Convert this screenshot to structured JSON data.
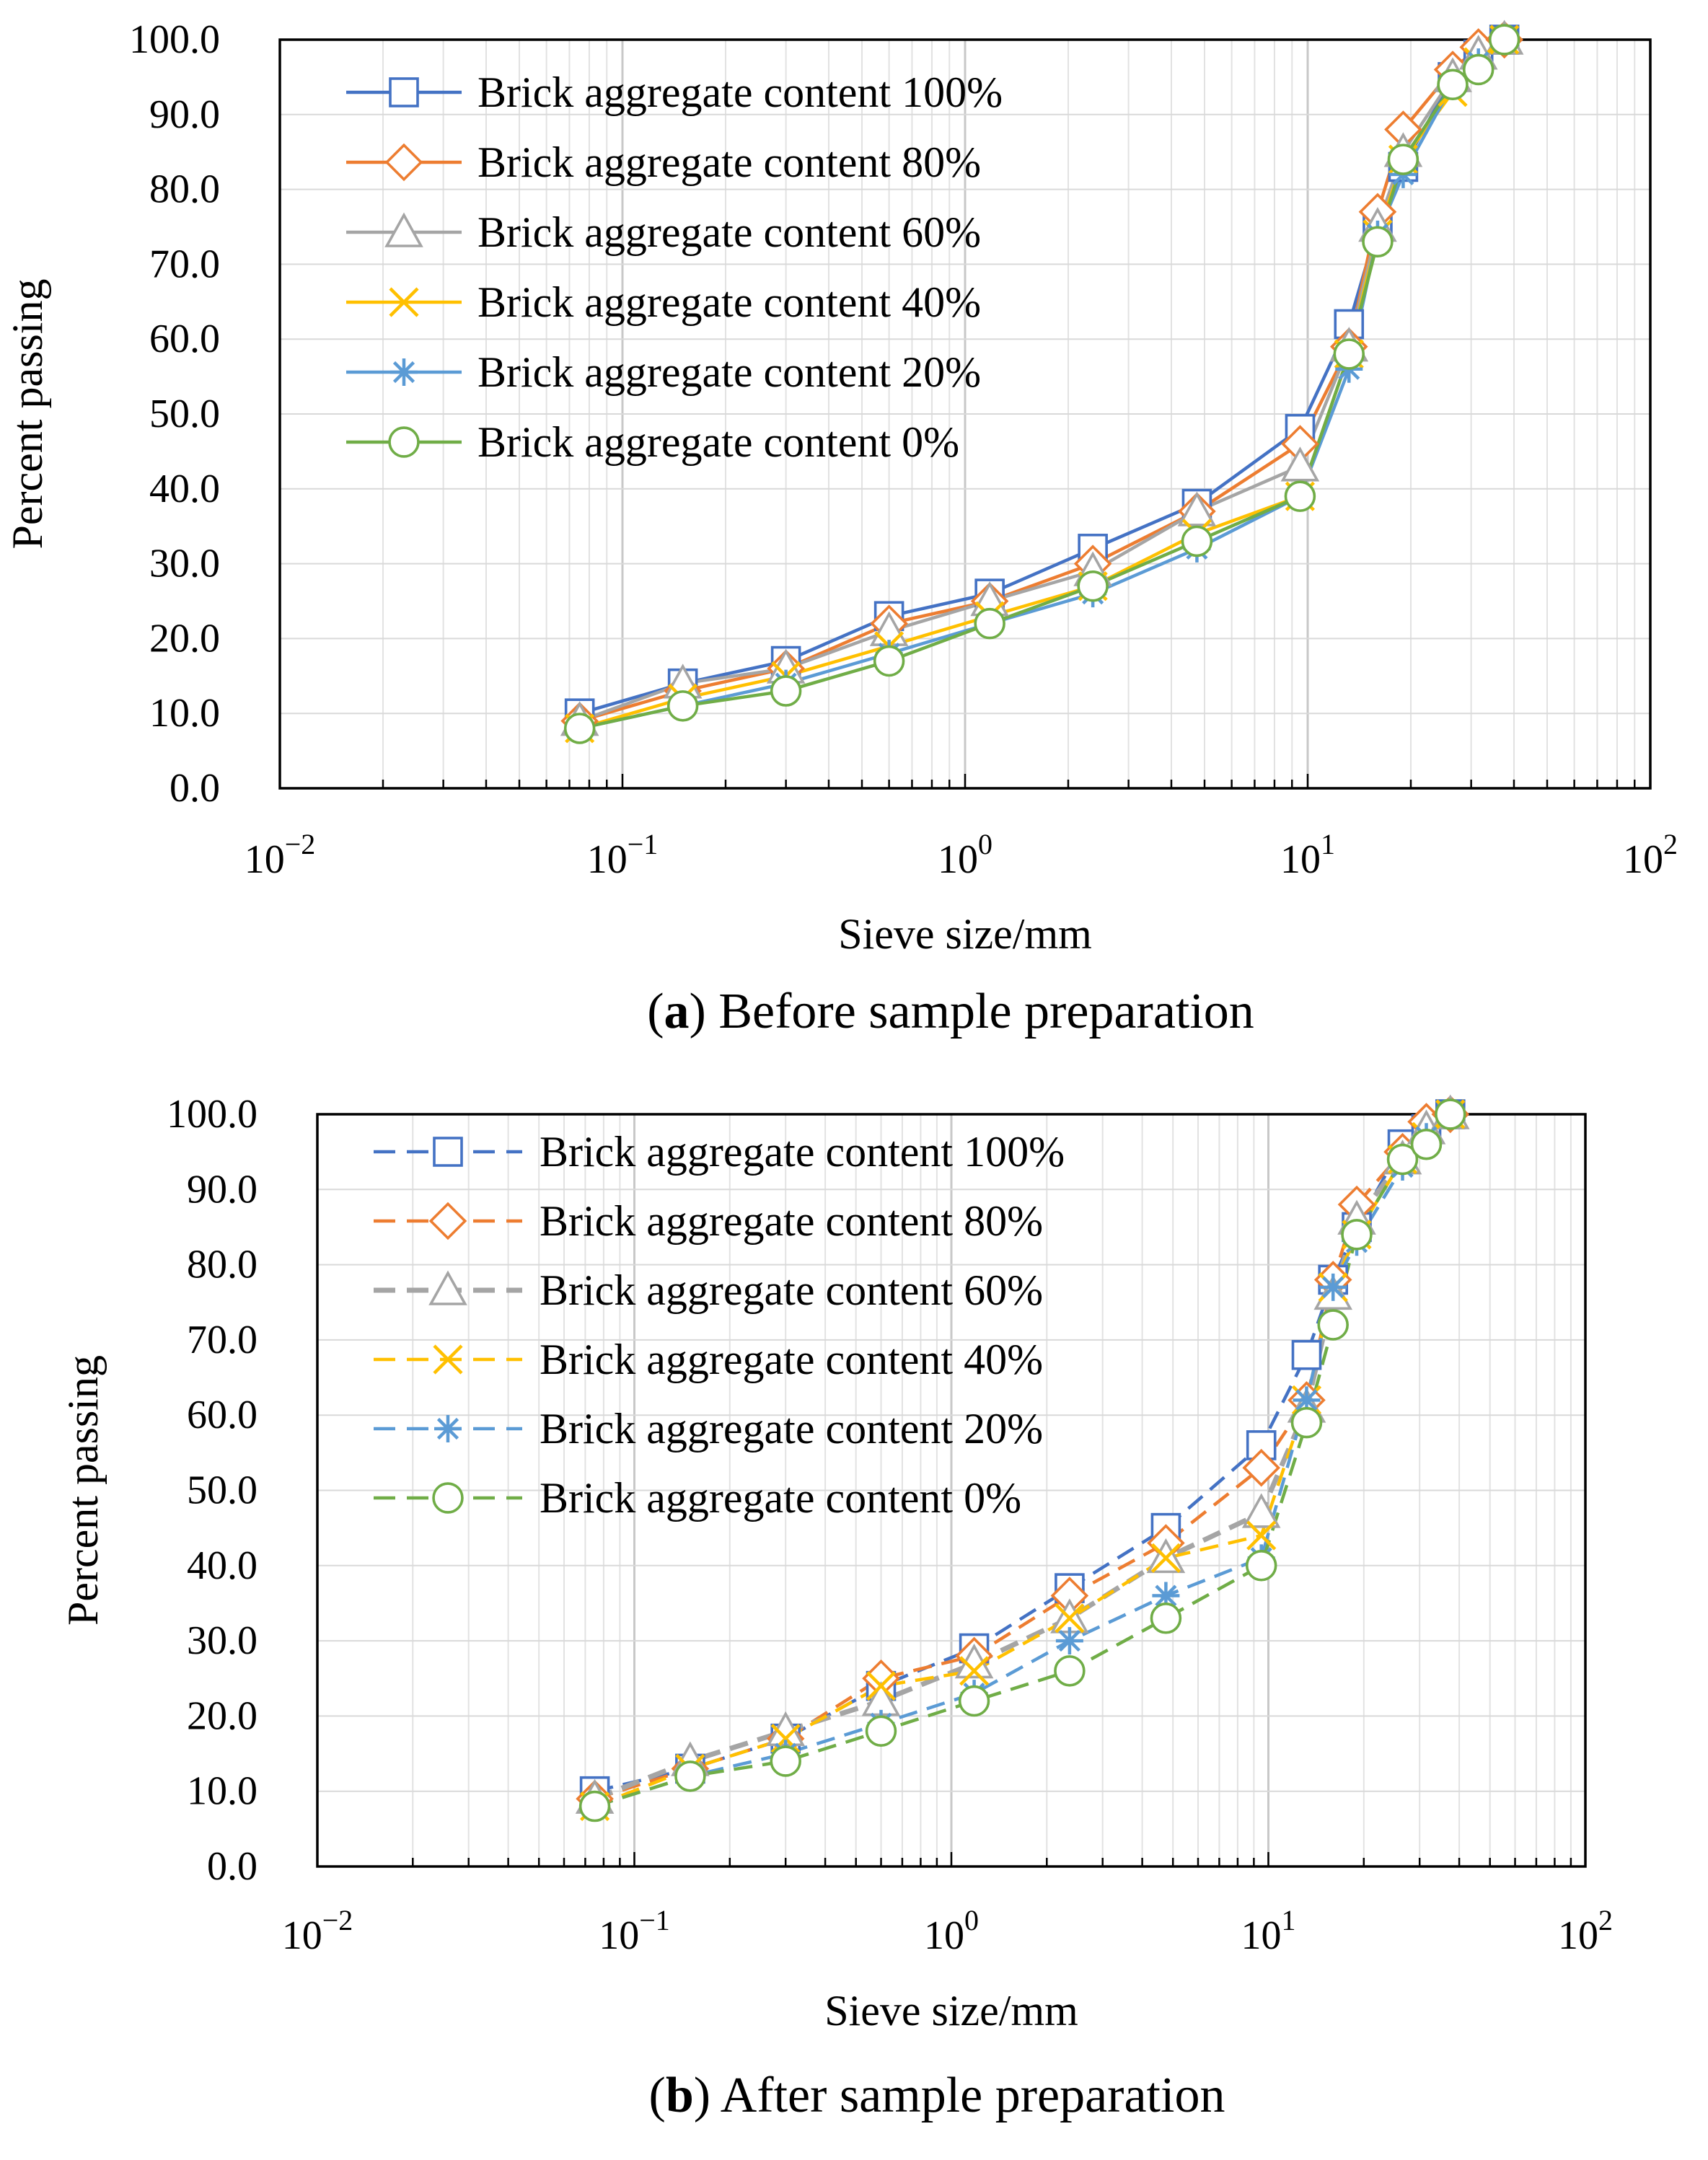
{
  "chart_data": [
    {
      "type": "line",
      "panel_label": "a",
      "caption": "Before sample preparation",
      "xlabel": "Sieve size/mm",
      "ylabel": "Percent passing",
      "xscale": "log",
      "xlim": [
        0.01,
        100
      ],
      "ylim": [
        0,
        100
      ],
      "xtick_labels": [
        {
          "base": "10",
          "exp": "−2"
        },
        {
          "base": "10",
          "exp": "−1"
        },
        {
          "base": "10",
          "exp": "0"
        },
        {
          "base": "10",
          "exp": "1"
        },
        {
          "base": "10",
          "exp": "2"
        }
      ],
      "ytick_labels": [
        "0.0",
        "10.0",
        "20.0",
        "30.0",
        "40.0",
        "50.0",
        "60.0",
        "70.0",
        "80.0",
        "90.0",
        "100.0"
      ],
      "grid": true,
      "line_style": "solid",
      "legend_position": "top-left",
      "x": [
        0.075,
        0.15,
        0.3,
        0.6,
        1.18,
        2.36,
        4.75,
        9.5,
        13.2,
        16,
        19,
        26.5,
        31.5,
        37.5
      ],
      "series": [
        {
          "name": "Brick aggregate content 100%",
          "marker": "square",
          "color": "#4472C4",
          "values": [
            10,
            14,
            17,
            23,
            26,
            32,
            38,
            48,
            62,
            75,
            83,
            95,
            98,
            100
          ]
        },
        {
          "name": "Brick aggregate content 80%",
          "marker": "diamond",
          "color": "#ED7D31",
          "values": [
            9,
            13,
            16,
            22,
            25,
            30,
            37,
            46,
            59,
            77,
            88,
            96,
            99,
            100
          ]
        },
        {
          "name": "Brick aggregate content 60%",
          "marker": "triangle",
          "color": "#A5A5A5",
          "values": [
            9,
            14,
            16,
            21,
            25,
            29,
            37,
            43,
            59,
            75,
            85,
            95,
            98,
            100
          ]
        },
        {
          "name": "Brick aggregate content 40%",
          "marker": "x",
          "color": "#FFC000",
          "values": [
            8,
            12,
            15,
            19,
            23,
            27,
            34,
            39,
            58,
            74,
            84,
            93,
            97,
            100
          ]
        },
        {
          "name": "Brick aggregate content 20%",
          "marker": "asterisk",
          "color": "#5B9BD5",
          "values": [
            8,
            11,
            14,
            18,
            22,
            26,
            32,
            39,
            56,
            74,
            82,
            94,
            97,
            100
          ]
        },
        {
          "name": "Brick aggregate content 0%",
          "marker": "circle",
          "color": "#70AD47",
          "values": [
            8,
            11,
            13,
            17,
            22,
            27,
            33,
            39,
            58,
            73,
            84,
            94,
            96,
            100
          ]
        }
      ]
    },
    {
      "type": "line",
      "panel_label": "b",
      "caption": "After sample preparation",
      "xlabel": "Sieve size/mm",
      "ylabel": "Percent passing",
      "xscale": "log",
      "xlim": [
        0.01,
        100
      ],
      "ylim": [
        0,
        100
      ],
      "xtick_labels": [
        {
          "base": "10",
          "exp": "−2"
        },
        {
          "base": "10",
          "exp": "−1"
        },
        {
          "base": "10",
          "exp": "0"
        },
        {
          "base": "10",
          "exp": "1"
        },
        {
          "base": "10",
          "exp": "2"
        }
      ],
      "ytick_labels": [
        "0.0",
        "10.0",
        "20.0",
        "30.0",
        "40.0",
        "50.0",
        "60.0",
        "70.0",
        "80.0",
        "90.0",
        "100.0"
      ],
      "grid": true,
      "line_style": "dashed",
      "legend_position": "top-left",
      "x": [
        0.075,
        0.15,
        0.3,
        0.6,
        1.18,
        2.36,
        4.75,
        9.5,
        13.2,
        16,
        19,
        26.5,
        31.5,
        37.5
      ],
      "series": [
        {
          "name": "Brick aggregate content 100%",
          "marker": "square",
          "color": "#4472C4",
          "values": [
            10,
            13,
            17,
            24,
            29,
            37,
            45,
            56,
            68,
            78,
            85,
            96,
            98,
            100
          ]
        },
        {
          "name": "Brick aggregate content 80%",
          "marker": "diamond",
          "color": "#ED7D31",
          "values": [
            9,
            13,
            17,
            25,
            28,
            36,
            43,
            53,
            62,
            78,
            88,
            95,
            99,
            100
          ]
        },
        {
          "name": "Brick aggregate content 60%",
          "marker": "triangle",
          "color": "#A5A5A5",
          "values": [
            9,
            14,
            18,
            22,
            27,
            33,
            41,
            47,
            61,
            76,
            86,
            94,
            98,
            100
          ]
        },
        {
          "name": "Brick aggregate content 40%",
          "marker": "x",
          "color": "#FFC000",
          "values": [
            8,
            13,
            17,
            24,
            26,
            33,
            41,
            44,
            62,
            77,
            84,
            94,
            97,
            100
          ]
        },
        {
          "name": "Brick aggregate content 20%",
          "marker": "asterisk",
          "color": "#5B9BD5",
          "values": [
            8,
            12,
            15,
            19,
            23,
            30,
            36,
            41,
            62,
            77,
            83,
            93,
            97,
            100
          ]
        },
        {
          "name": "Brick aggregate content 0%",
          "marker": "circle",
          "color": "#70AD47",
          "values": [
            8,
            12,
            14,
            18,
            22,
            26,
            33,
            40,
            59,
            72,
            84,
            94,
            96,
            100
          ]
        }
      ]
    }
  ]
}
